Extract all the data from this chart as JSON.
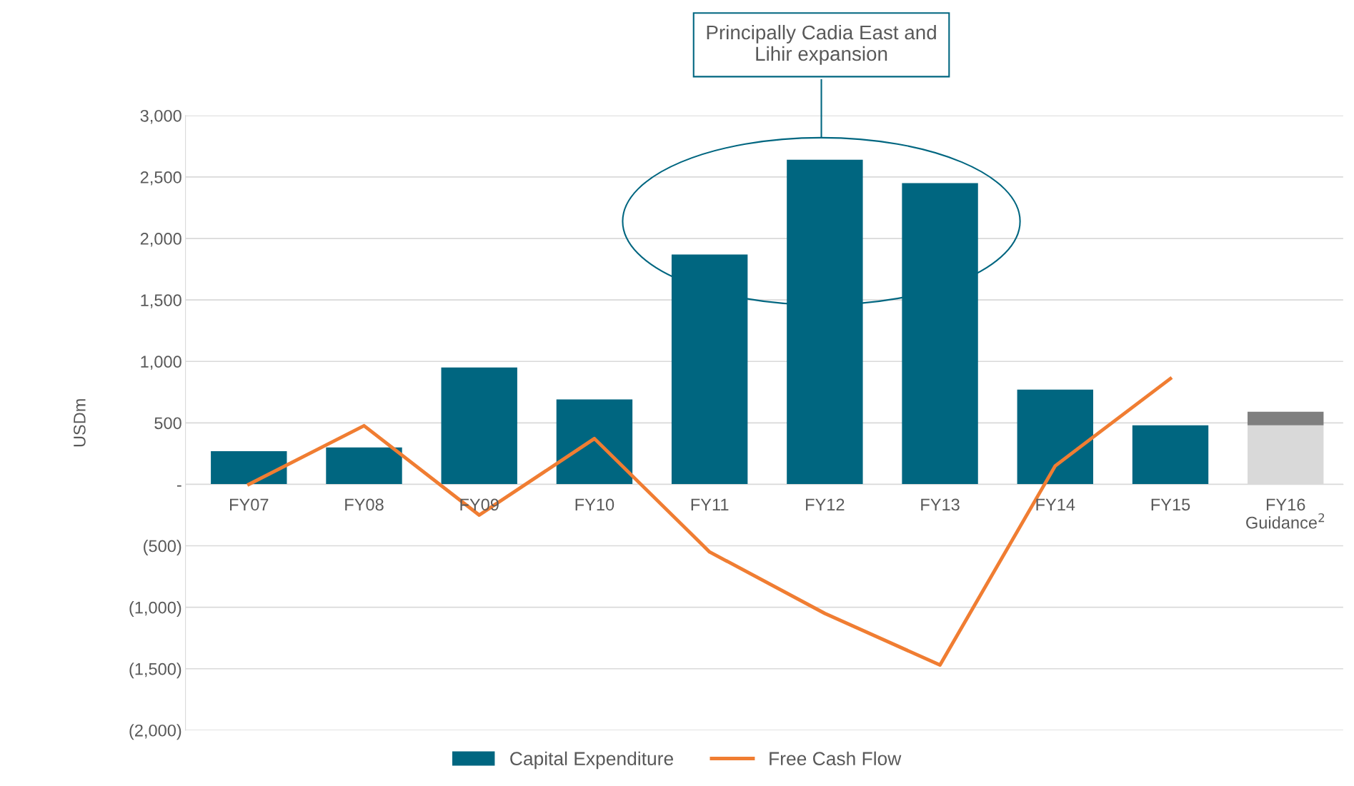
{
  "chart_data": {
    "type": "bar",
    "stacked": true,
    "ylabel": "USDm",
    "categories": [
      "FY07",
      "FY08",
      "FY09",
      "FY10",
      "FY11",
      "FY12",
      "FY13",
      "FY14",
      "FY15",
      "FY16\nGuidance$^{2}$"
    ],
    "series": [
      {
        "name": "Capital Expenditure",
        "color": "#006680",
        "colors": [
          "#006680",
          "#006680",
          "#006680",
          "#006680",
          "#006680",
          "#006680",
          "#006680",
          "#006680",
          "#006680",
          "#d9d9d9"
        ],
        "values": [
          270,
          300,
          950,
          690,
          1870,
          2640,
          2450,
          770,
          480,
          480
        ]
      },
      {
        "color": "#7f7f7f",
        "values": [
          null,
          null,
          null,
          null,
          null,
          null,
          null,
          null,
          null,
          110
        ]
      },
      {
        "name": "Free Cash Flow",
        "type": "line",
        "color": "#f07d32",
        "values": [
          0,
          477,
          -250,
          372,
          -550,
          -1050,
          -1470,
          150,
          860,
          null
        ]
      }
    ],
    "ylim": [
      -2000,
      3000
    ],
    "yticks": [
      {
        "value": -2000,
        "label": "(2,000)"
      },
      {
        "value": -1500,
        "label": "(1,500)"
      },
      {
        "value": -1000,
        "label": "(1,000)"
      },
      {
        "value": -500,
        "label": "(500)"
      },
      {
        "value": 0,
        "label": "-"
      },
      500,
      {
        "value": 1000,
        "label": "1,000"
      },
      {
        "value": 1500,
        "label": "1,500"
      },
      {
        "value": 2000,
        "label": "2,000"
      },
      {
        "value": 2500,
        "label": "2,500"
      },
      {
        "value": 3000,
        "label": "3,000"
      }
    ],
    "grid": "y",
    "legend": "bottom",
    "marker": "none",
    "line_style": "solid",
    "annotations": [
      "Principally Cadia East and\nLihir expansion"
    ]
  }
}
